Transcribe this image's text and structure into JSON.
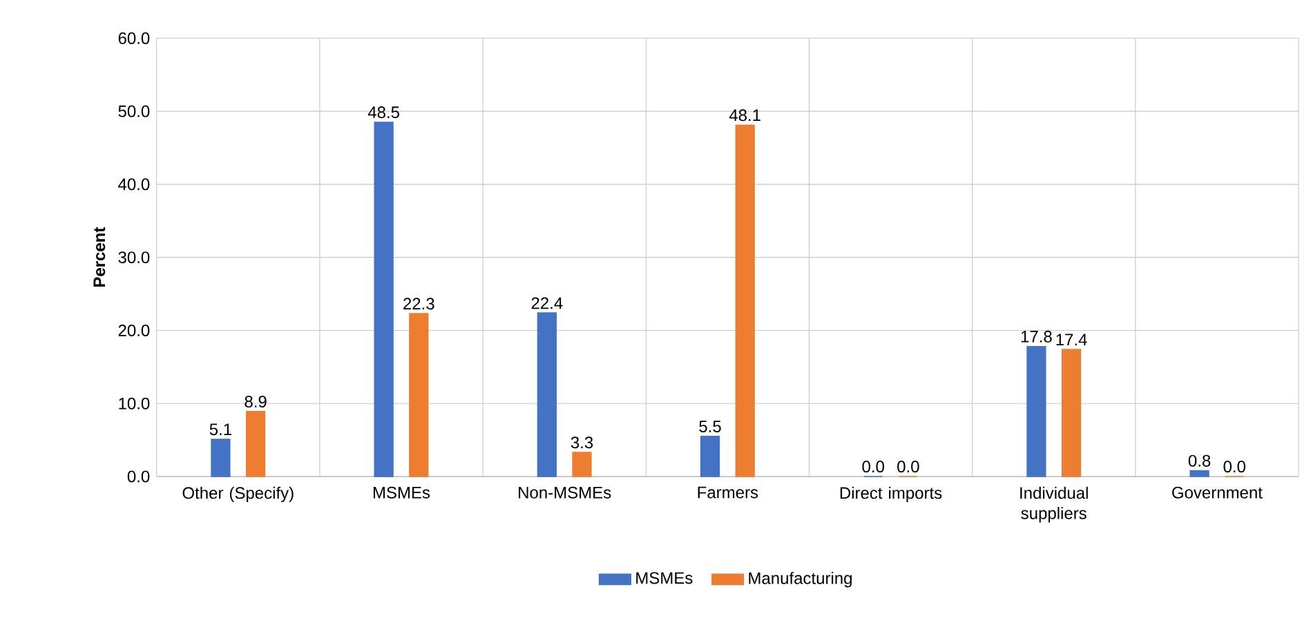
{
  "chart_data": {
    "type": "bar",
    "ylabel": "Percent",
    "categories": [
      "Other (Specify)",
      "MSMEs",
      "Non-MSMEs",
      "Farmers",
      "Direct imports",
      "Individual suppliers",
      "Government"
    ],
    "series": [
      {
        "name": "MSMEs",
        "color": "#4472c4",
        "values": [
          5.1,
          48.5,
          22.4,
          5.5,
          0.0,
          17.8,
          0.8
        ],
        "value_labels": [
          "5.1",
          "48.5",
          "22.4",
          "5.5",
          "0.0",
          "17.8",
          "0.8"
        ]
      },
      {
        "name": "Manufacturing",
        "color": "#ed7d31",
        "values": [
          8.9,
          22.3,
          3.3,
          48.1,
          0.0,
          17.4,
          0.0
        ],
        "value_labels": [
          "8.9",
          "22.3",
          "3.3",
          "48.1",
          "0.0",
          "17.4",
          "0.0"
        ]
      }
    ],
    "ylim": [
      0,
      60
    ],
    "yticks": [
      {
        "value": 0,
        "label": "0.0"
      },
      {
        "value": 10,
        "label": "10.0"
      },
      {
        "value": 20,
        "label": "20.0"
      },
      {
        "value": 30,
        "label": "30.0"
      },
      {
        "value": 40,
        "label": "40.0"
      },
      {
        "value": 50,
        "label": "50.0"
      },
      {
        "value": 60,
        "label": "60.0"
      }
    ],
    "grid": true,
    "legend": "bottom"
  }
}
